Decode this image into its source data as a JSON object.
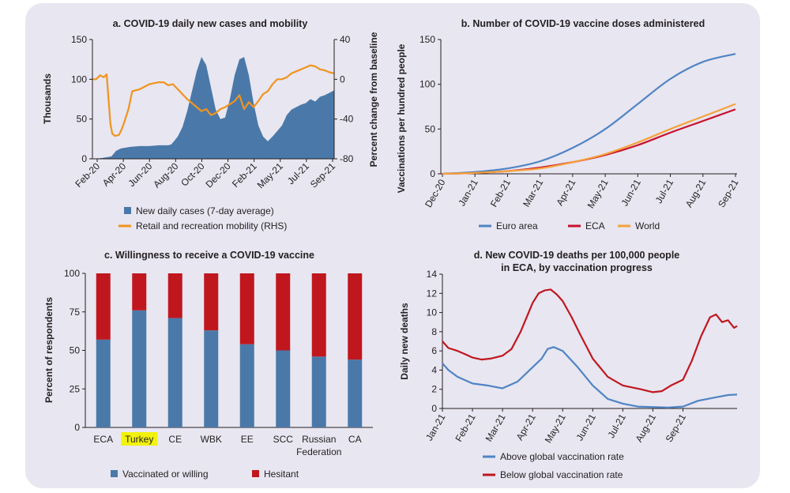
{
  "chart_data": [
    {
      "panel": "a",
      "type": "area",
      "title": "a. COVID-19 daily new cases and mobility",
      "ylabel": "Thousands",
      "ylabel_right": "Percent change from baseline",
      "ylim": [
        0,
        150
      ],
      "ylim_right": [
        -80,
        40
      ],
      "yticks": [
        "0",
        "50",
        "100",
        "150"
      ],
      "yticks_right": [
        "-80",
        "-40",
        "0",
        "40"
      ],
      "xticks": [
        "Feb-20",
        "Apr-20",
        "Jun-20",
        "Aug-20",
        "Oct-20",
        "Dec-20",
        "Feb-21",
        "May-21",
        "Jul-21",
        "Sep-21"
      ],
      "legend": [
        "New daily cases (7-day average)",
        "Retail and recreation mobility (RHS)"
      ],
      "colors": {
        "cases": "#4a79a9",
        "mobility": "#f0941e"
      },
      "cases": {
        "x": [
          0,
          1,
          2,
          2.5,
          3,
          4,
          5,
          6,
          7,
          8,
          8.3,
          8.6,
          9,
          9.5,
          10,
          10.5,
          11,
          11.5,
          12,
          12.5,
          13,
          13.5,
          14,
          14.5,
          15,
          15.5,
          16,
          16.5,
          17,
          17.5,
          18,
          18.5,
          19,
          20,
          20.5,
          21,
          22,
          22.5,
          23,
          23.5,
          24,
          24.5,
          25.5
        ],
        "y": [
          0,
          1,
          3,
          10,
          13,
          15,
          16,
          16,
          17,
          17,
          18,
          22,
          28,
          40,
          60,
          85,
          110,
          128,
          118,
          90,
          62,
          50,
          52,
          75,
          105,
          125,
          128,
          105,
          70,
          42,
          28,
          22,
          28,
          42,
          55,
          62,
          68,
          70,
          75,
          72,
          78,
          80,
          86
        ]
      },
      "mobility": {
        "x": [
          0,
          0.4,
          0.8,
          1.2,
          1.5,
          1.7,
          1.9,
          2.1,
          2.4,
          2.8,
          3.1,
          3.4,
          3.8,
          4.2,
          5,
          6,
          7,
          7.5,
          8,
          8.5,
          9,
          9.5,
          10,
          10.5,
          11,
          11.5,
          12,
          12.5,
          13,
          13.5,
          14,
          14.5,
          15,
          15.5,
          16,
          16.5,
          17,
          17.5,
          18,
          18.5,
          19,
          19.5,
          20,
          20.5,
          21,
          21.5,
          22,
          22.5,
          23,
          23.5,
          24,
          24.5,
          25,
          25.5
        ],
        "y": [
          0,
          0,
          4,
          2,
          5,
          -20,
          -45,
          -55,
          -57,
          -56,
          -50,
          -42,
          -30,
          -12,
          -10,
          -5,
          -3,
          -3,
          -6,
          -5,
          -10,
          -15,
          -20,
          -24,
          -28,
          -32,
          -30,
          -36,
          -34,
          -30,
          -28,
          -25,
          -22,
          -16,
          -30,
          -23,
          -28,
          -22,
          -15,
          -12,
          -5,
          0,
          0,
          2,
          6,
          8,
          10,
          12,
          14,
          13,
          10,
          9,
          7,
          6
        ]
      }
    },
    {
      "panel": "b",
      "type": "line",
      "title": "b. Number of COVID-19 vaccine doses administered",
      "ylabel": "Vaccinations per hundred people",
      "ylim": [
        0,
        150
      ],
      "yticks": [
        "0",
        "50",
        "100",
        "150"
      ],
      "x": [
        "Dec-20",
        "Jan-21",
        "Feb-21",
        "Mar-21",
        "Apr-21",
        "May-21",
        "Jun-21",
        "Jul-21",
        "Aug-21",
        "Sep-21"
      ],
      "series": [
        {
          "name": "Euro area",
          "color": "#4f84c4",
          "values": [
            0,
            2,
            6,
            14,
            29,
            50,
            78,
            106,
            125,
            134
          ]
        },
        {
          "name": "ECA",
          "color": "#c8102e",
          "values": [
            0,
            1,
            3,
            7,
            13,
            21,
            32,
            46,
            59,
            72
          ]
        },
        {
          "name": "World",
          "color": "#f5a23a",
          "values": [
            0,
            1,
            3,
            6,
            13,
            22,
            35,
            50,
            64,
            78
          ]
        }
      ]
    },
    {
      "panel": "c",
      "type": "bar",
      "stacked": true,
      "title": "c. Willingness to receive a COVID-19 vaccine",
      "ylabel": "Percent of respondents",
      "ylim": [
        0,
        100
      ],
      "yticks": [
        "0",
        "25",
        "50",
        "75",
        "100"
      ],
      "categories": [
        "ECA",
        "Turkey",
        "CE",
        "WBK",
        "EE",
        "SCC",
        "Russian Federation",
        "CA"
      ],
      "category_lines": [
        [
          "ECA"
        ],
        [
          "Turkey"
        ],
        [
          "CE"
        ],
        [
          "WBK"
        ],
        [
          "EE"
        ],
        [
          "SCC"
        ],
        [
          "Russian",
          "Federation"
        ],
        [
          "CA"
        ]
      ],
      "highlight": "Turkey",
      "series": [
        {
          "name": "Vaccinated or willing",
          "color": "#4a79a9",
          "values": [
            57,
            76,
            71,
            63,
            54,
            50,
            46,
            44
          ]
        },
        {
          "name": "Hesitant",
          "color": "#c0171e",
          "values": [
            43,
            24,
            29,
            37,
            46,
            50,
            54,
            56
          ]
        }
      ]
    },
    {
      "panel": "d",
      "type": "line",
      "title": "d. New COVID-19 deaths per 100,000 people",
      "title_line2": "in ECA, by vaccination progress",
      "ylabel": "Daily new deaths",
      "ylim": [
        0,
        14
      ],
      "yticks": [
        "0",
        "2",
        "4",
        "6",
        "8",
        "10",
        "12",
        "14"
      ],
      "xticks": [
        "Jan-21",
        "Feb-21",
        "Mar-21",
        "Apr-21",
        "May-21",
        "Jun-21",
        "Jul-21",
        "Aug-21",
        "Sep-21"
      ],
      "series": [
        {
          "name": "Above global vaccination rate",
          "color": "#4f84c4",
          "x": [
            0,
            0.2,
            0.5,
            1,
            1.5,
            2,
            2.5,
            3,
            3.3,
            3.5,
            3.7,
            4,
            4.5,
            5,
            5.5,
            6,
            6.5,
            7,
            7.5,
            8,
            8.5,
            9,
            9.5,
            9.8
          ],
          "y": [
            4.7,
            4.0,
            3.3,
            2.6,
            2.4,
            2.1,
            2.8,
            4.3,
            5.2,
            6.2,
            6.4,
            6.0,
            4.3,
            2.4,
            1.0,
            0.5,
            0.2,
            0.15,
            0.1,
            0.2,
            0.8,
            1.1,
            1.4,
            1.45
          ]
        },
        {
          "name": "Below global vaccination rate",
          "color": "#c0171e",
          "x": [
            0,
            0.2,
            0.5,
            0.8,
            1,
            1.3,
            1.6,
            2,
            2.3,
            2.6,
            3,
            3.2,
            3.4,
            3.6,
            3.8,
            4,
            4.3,
            4.6,
            5,
            5.5,
            6,
            6.3,
            6.6,
            7,
            7.3,
            7.6,
            8,
            8.3,
            8.6,
            8.9,
            9.1,
            9.3,
            9.5,
            9.7,
            9.8
          ],
          "y": [
            7.0,
            6.3,
            6.0,
            5.6,
            5.3,
            5.1,
            5.2,
            5.5,
            6.2,
            8.0,
            11.0,
            12.0,
            12.3,
            12.4,
            11.9,
            11.2,
            9.5,
            7.6,
            5.2,
            3.3,
            2.4,
            2.2,
            2.0,
            1.7,
            1.8,
            2.4,
            3.0,
            5.0,
            7.5,
            9.5,
            9.8,
            9.0,
            9.2,
            8.4,
            8.6
          ]
        }
      ]
    }
  ]
}
